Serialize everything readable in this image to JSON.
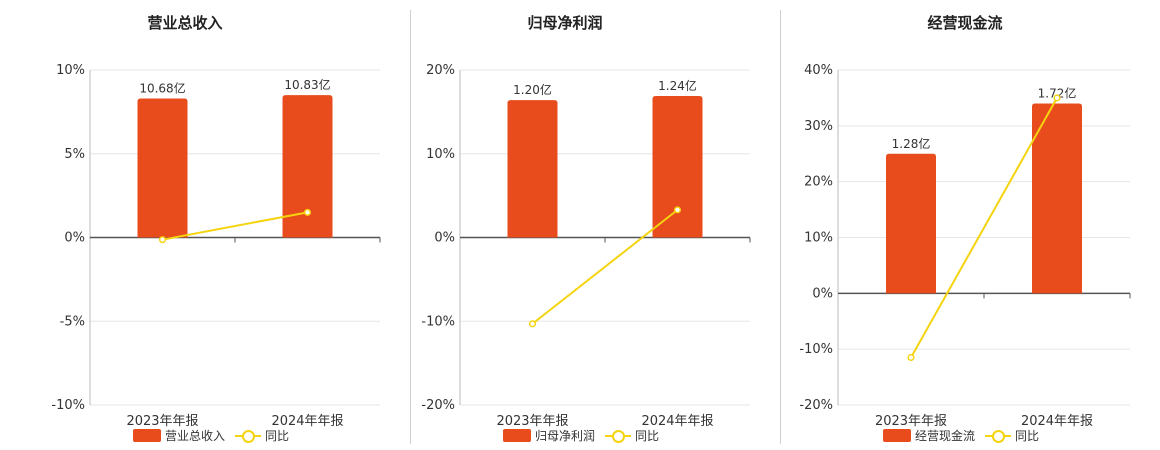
{
  "colors": {
    "bar": "#e84c1c",
    "line": "#f5d40f",
    "axis": "#555555",
    "grid": "#e6e6e6"
  },
  "chart_data": [
    {
      "type": "bar",
      "title": "营业总收入",
      "categories": [
        "2023年年报",
        "2024年年报"
      ],
      "bar_labels": [
        "10.68亿",
        "10.83亿"
      ],
      "series": [
        {
          "name": "营业总收入",
          "type": "bar",
          "values": [
            8.3,
            8.5
          ]
        },
        {
          "name": "同比",
          "type": "line",
          "values": [
            -0.13,
            1.5
          ]
        }
      ],
      "ylim": [
        -10,
        10
      ],
      "yticks": [
        "10%",
        "5%",
        "0%",
        "-5%",
        "-10%"
      ],
      "grid": true,
      "legend": "bottom"
    },
    {
      "type": "bar",
      "title": "归母净利润",
      "categories": [
        "2023年年报",
        "2024年年报"
      ],
      "bar_labels": [
        "1.20亿",
        "1.24亿"
      ],
      "series": [
        {
          "name": "归母净利润",
          "type": "bar",
          "values": [
            16.4,
            16.9
          ]
        },
        {
          "name": "同比",
          "type": "line",
          "values": [
            -10.3,
            3.3
          ]
        }
      ],
      "ylim": [
        -20,
        20
      ],
      "yticks": [
        "20%",
        "10%",
        "0%",
        "-10%",
        "-20%"
      ],
      "grid": true,
      "legend": "bottom"
    },
    {
      "type": "bar",
      "title": "经营现金流",
      "categories": [
        "2023年年报",
        "2024年年报"
      ],
      "bar_labels": [
        "1.28亿",
        "1.72亿"
      ],
      "series": [
        {
          "name": "经营现金流",
          "type": "bar",
          "values": [
            25,
            34
          ]
        },
        {
          "name": "同比",
          "type": "line",
          "values": [
            -11.5,
            35
          ]
        }
      ],
      "ylim": [
        -20,
        40
      ],
      "yticks": [
        "40%",
        "30%",
        "20%",
        "10%",
        "0%",
        "-10%",
        "-20%"
      ],
      "grid": true,
      "legend": "bottom"
    }
  ]
}
